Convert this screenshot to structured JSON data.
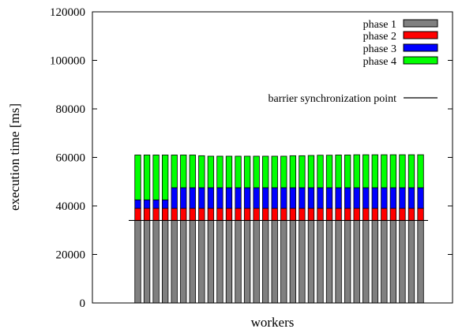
{
  "chart_data": {
    "type": "bar",
    "stacked": true,
    "title": "",
    "xlabel": "workers",
    "ylabel": "execution time [ms]",
    "ylim": [
      0,
      120000
    ],
    "yticks": [
      0,
      20000,
      40000,
      60000,
      80000,
      100000,
      120000
    ],
    "ytick_labels": [
      "0",
      "20000",
      "40000",
      "60000",
      "80000",
      "100000",
      "120000"
    ],
    "grid": false,
    "legend_position": "top-right",
    "categories": [
      "",
      "",
      "",
      "",
      "",
      "",
      "",
      "",
      "",
      "",
      "",
      "",
      "",
      "",
      "",
      "",
      "",
      "",
      "",
      "",
      "",
      "",
      "",
      "",
      "",
      "",
      "",
      "",
      "",
      "",
      "",
      ""
    ],
    "series": [
      {
        "name": "phase 1",
        "color": "#808080",
        "values": [
          34000,
          34000,
          34000,
          34000,
          34000,
          34000,
          34000,
          34000,
          34000,
          34000,
          34000,
          34000,
          34000,
          34000,
          34000,
          34000,
          34000,
          34000,
          34000,
          34000,
          34000,
          34000,
          34000,
          34000,
          34000,
          34000,
          34000,
          34000,
          34000,
          34000,
          34000,
          34000
        ]
      },
      {
        "name": "phase 2",
        "color": "#ff0000",
        "values": [
          5000,
          5000,
          5000,
          5000,
          5000,
          5000,
          5000,
          5000,
          5000,
          5000,
          5000,
          5000,
          5000,
          5000,
          5000,
          5000,
          5000,
          5000,
          5000,
          5000,
          5000,
          5000,
          5000,
          5000,
          5000,
          5000,
          5000,
          5000,
          5000,
          5000,
          5000,
          5000
        ]
      },
      {
        "name": "phase 3",
        "color": "#0000ff",
        "values": [
          3500,
          3500,
          3500,
          3500,
          8500,
          8500,
          8500,
          8500,
          8500,
          8500,
          8500,
          8500,
          8500,
          8500,
          8500,
          8500,
          8500,
          8500,
          8500,
          8500,
          8500,
          8500,
          8500,
          8500,
          8500,
          8500,
          8500,
          8500,
          8500,
          8500,
          8500,
          8500
        ]
      },
      {
        "name": "phase 4",
        "color": "#00ff00",
        "values": [
          18500,
          18500,
          18500,
          18500,
          13500,
          13500,
          13500,
          13200,
          13000,
          13000,
          13000,
          13000,
          13000,
          13000,
          13000,
          13000,
          13000,
          13200,
          13200,
          13300,
          13400,
          13400,
          13500,
          13500,
          13600,
          13600,
          13600,
          13600,
          13600,
          13600,
          13600,
          13600
        ]
      }
    ],
    "reference_line": {
      "name": "barrier synchronization point",
      "y": 34000,
      "color": "#000000"
    }
  }
}
